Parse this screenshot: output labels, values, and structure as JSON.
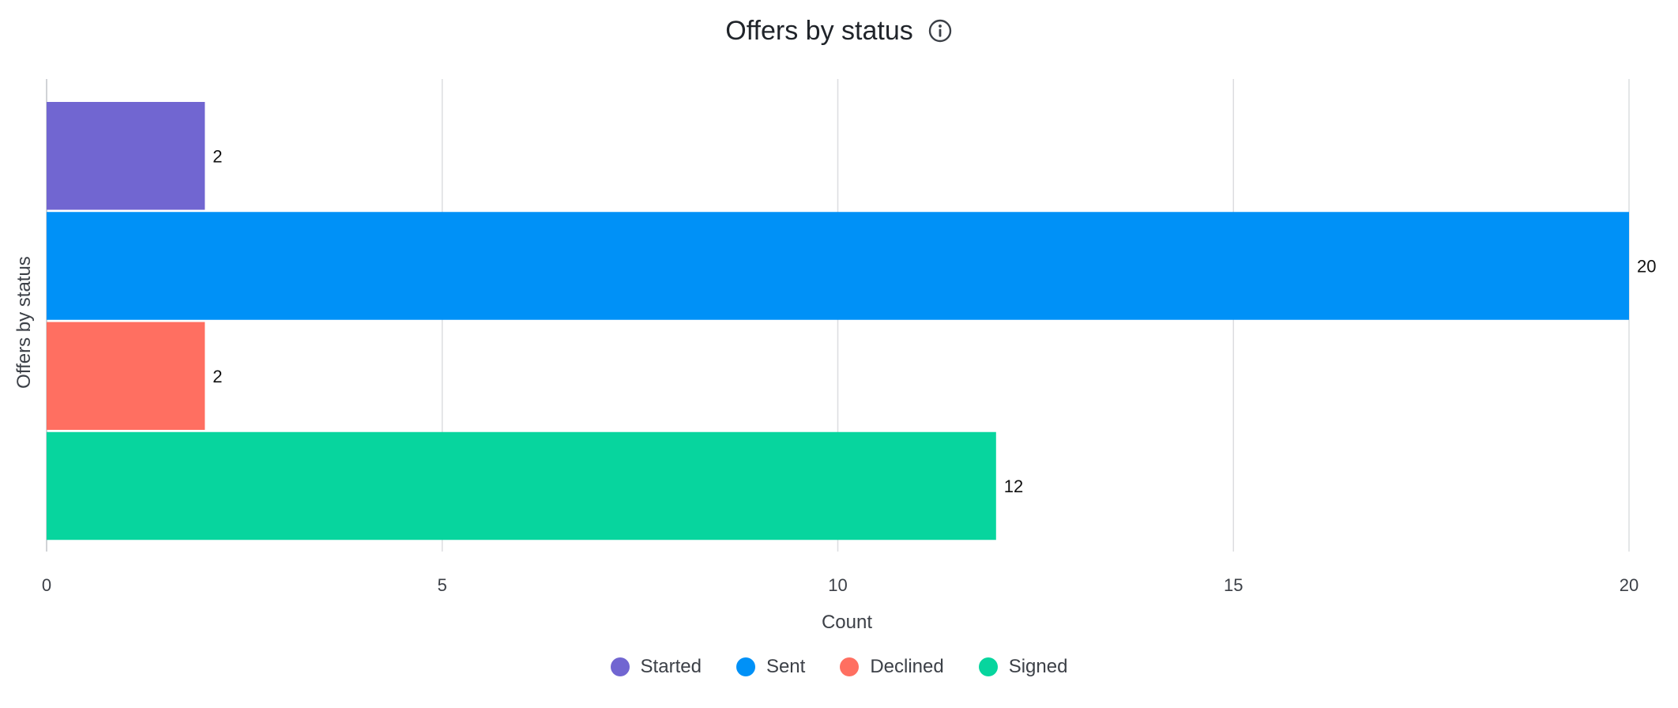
{
  "info_icon": "info-circle-icon",
  "chart_data": {
    "type": "bar",
    "orientation": "horizontal",
    "title": "Offers by status",
    "xlabel": "Count",
    "ylabel": "Offers by status",
    "xlim": [
      0,
      20
    ],
    "x_ticks": [
      "0",
      "5",
      "10",
      "15",
      "20"
    ],
    "grid": true,
    "legend_position": "bottom",
    "categories": [
      "Started",
      "Sent",
      "Declined",
      "Signed"
    ],
    "values": [
      2,
      20,
      2,
      12
    ],
    "value_labels": [
      "2",
      "20",
      "2",
      "12"
    ],
    "colors": [
      "#7166d1",
      "#0091f7",
      "#ff6f61",
      "#07d59e"
    ]
  }
}
